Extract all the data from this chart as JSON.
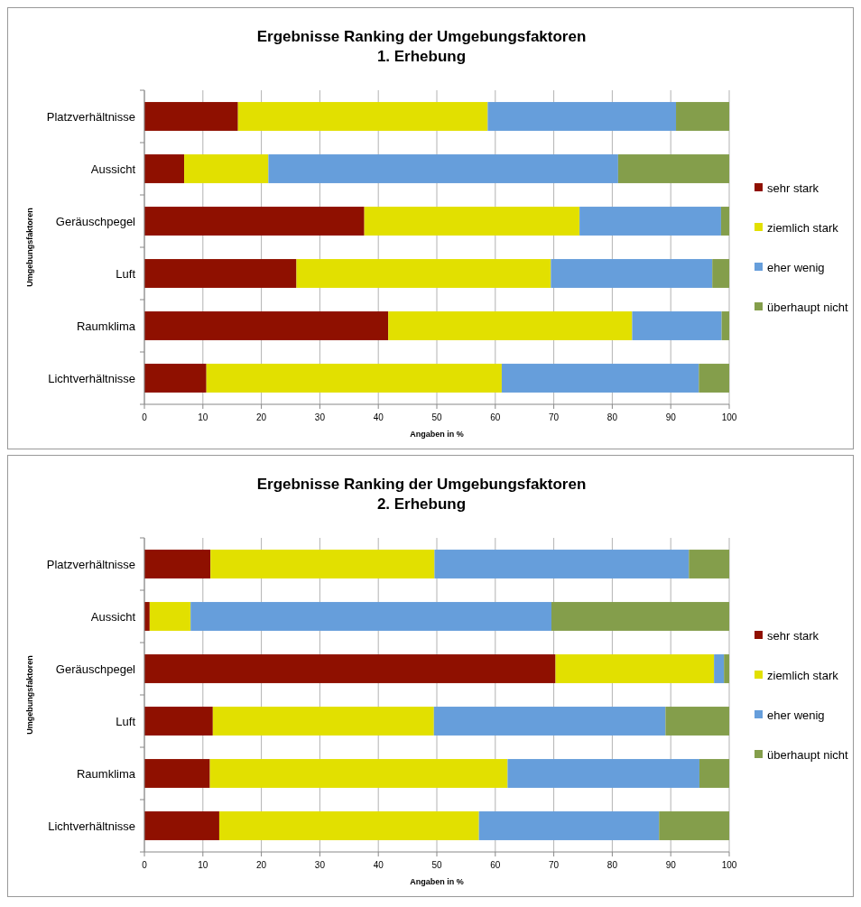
{
  "chart_data": [
    {
      "type": "bar",
      "orientation": "horizontal",
      "stacked": true,
      "title": "Ergebnisse Ranking der Umgebungsfaktoren",
      "subtitle": "1. Erhebung",
      "xlabel": "Angaben in %",
      "ylabel": "Umgebungsfaktoren",
      "categories": [
        "Platzverhältnisse",
        "Aussicht",
        "Geräuschpegel",
        "Luft",
        "Raumklima",
        "Lichtverhältnisse"
      ],
      "xlim": [
        0,
        100
      ],
      "xticks": [
        0,
        10,
        20,
        30,
        40,
        50,
        60,
        70,
        80,
        90,
        100
      ],
      "grid": "x",
      "legend": "right",
      "series": [
        {
          "name": "sehr stark",
          "color": "#8f1000",
          "values": [
            16.0,
            6.8,
            37.6,
            26.0,
            41.7,
            10.6
          ]
        },
        {
          "name": "ziemlich stark",
          "color": "#e2e000",
          "values": [
            42.7,
            14.4,
            36.8,
            43.5,
            41.7,
            50.5
          ]
        },
        {
          "name": "eher wenig",
          "color": "#669edb",
          "values": [
            32.2,
            59.8,
            24.2,
            27.6,
            15.3,
            33.7
          ]
        },
        {
          "name": "überhaupt nicht",
          "color": "#849e4b",
          "values": [
            9.1,
            19.0,
            1.4,
            2.9,
            1.3,
            5.2
          ]
        }
      ]
    },
    {
      "type": "bar",
      "orientation": "horizontal",
      "stacked": true,
      "title": "Ergebnisse Ranking der Umgebungsfaktoren",
      "subtitle": "2. Erhebung",
      "xlabel": "Angaben in %",
      "ylabel": "Umgebungsfaktoren",
      "categories": [
        "Platzverhältnisse",
        "Aussicht",
        "Geräuschpegel",
        "Luft",
        "Raumklima",
        "Lichtverhältnisse"
      ],
      "xlim": [
        0,
        100
      ],
      "xticks": [
        0,
        10,
        20,
        30,
        40,
        50,
        60,
        70,
        80,
        90,
        100
      ],
      "grid": "x",
      "legend": "right",
      "series": [
        {
          "name": "sehr stark",
          "color": "#8f1000",
          "values": [
            11.3,
            0.9,
            70.3,
            11.7,
            11.2,
            12.8
          ]
        },
        {
          "name": "ziemlich stark",
          "color": "#e2e000",
          "values": [
            38.3,
            7.0,
            27.1,
            37.8,
            50.9,
            44.4
          ]
        },
        {
          "name": "eher wenig",
          "color": "#669edb",
          "values": [
            43.5,
            61.7,
            1.7,
            39.6,
            32.8,
            30.8
          ]
        },
        {
          "name": "überhaupt nicht",
          "color": "#849e4b",
          "values": [
            6.9,
            30.4,
            0.9,
            10.9,
            5.1,
            12.0
          ]
        }
      ]
    }
  ]
}
